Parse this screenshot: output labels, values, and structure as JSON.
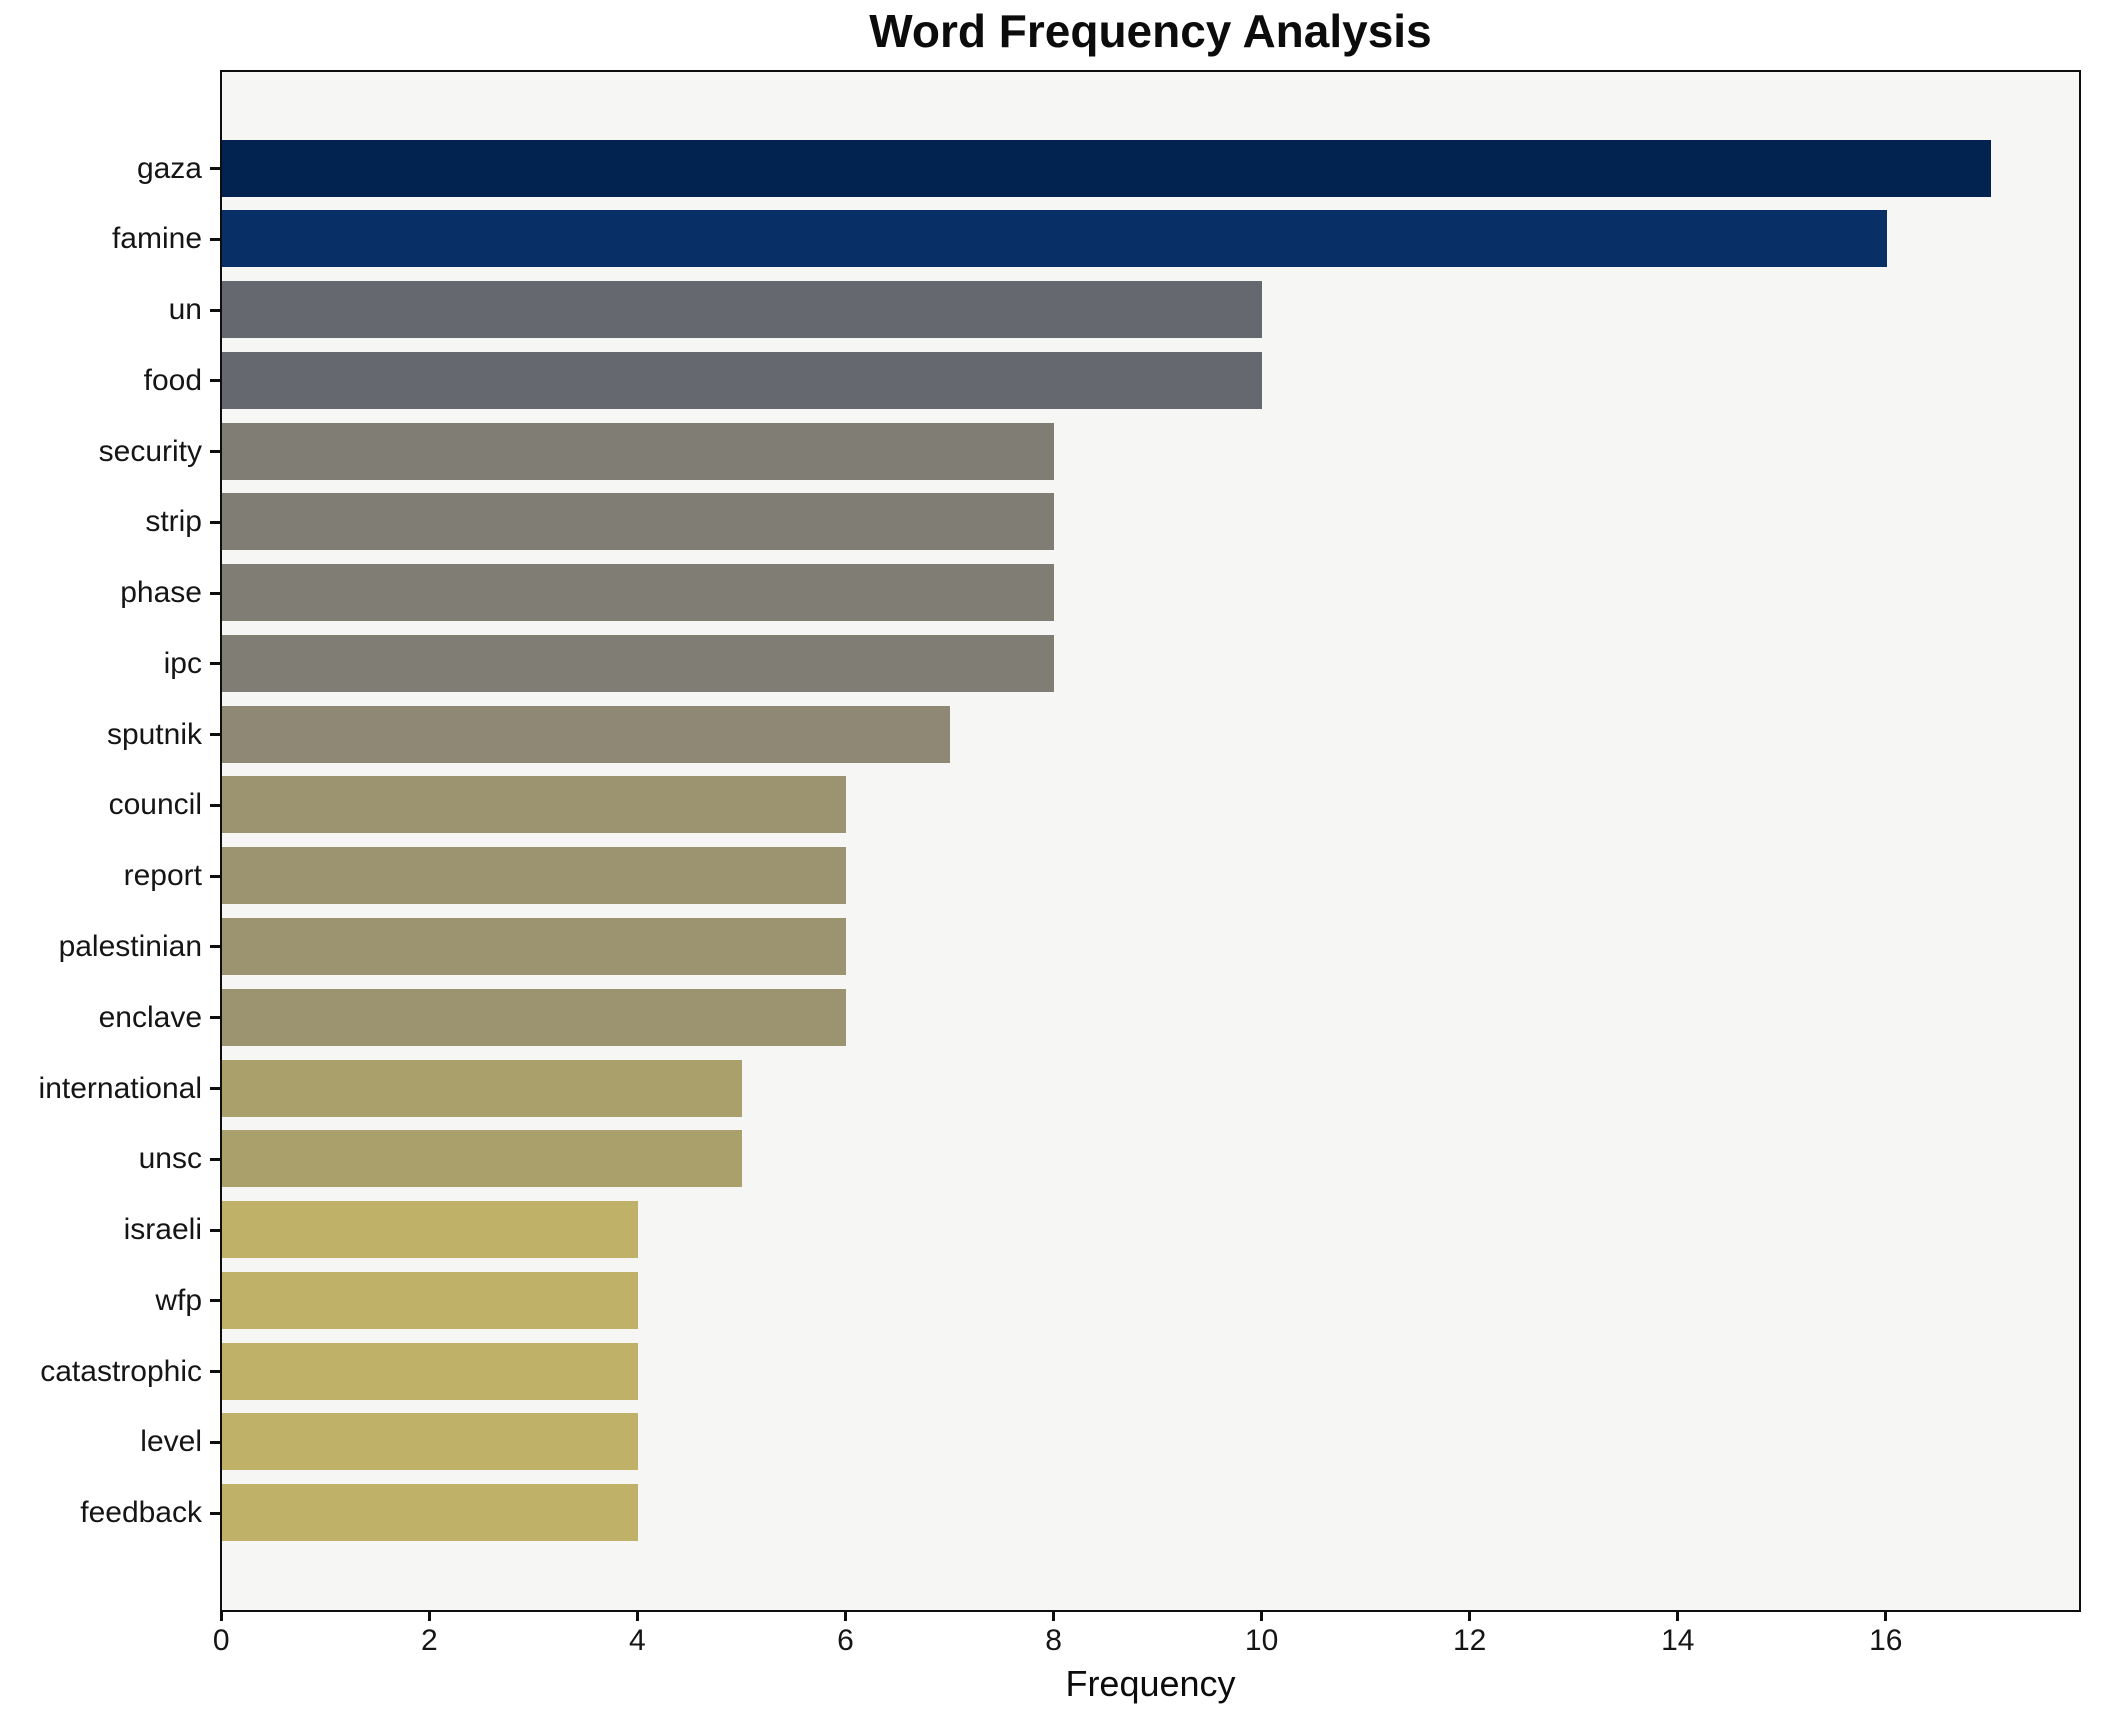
{
  "title": "Word Frequency Analysis",
  "xlabel": "Frequency",
  "chart_data": {
    "type": "bar",
    "orientation": "horizontal",
    "title": "Word Frequency Analysis",
    "xlabel": "Frequency",
    "ylabel": "",
    "grid": false,
    "legend": false,
    "xlim": [
      0,
      17.84
    ],
    "x_ticks": [
      0,
      2,
      4,
      6,
      8,
      10,
      12,
      14,
      16
    ],
    "categories": [
      "gaza",
      "famine",
      "un",
      "food",
      "security",
      "strip",
      "phase",
      "ipc",
      "sputnik",
      "council",
      "report",
      "palestinian",
      "enclave",
      "international",
      "unsc",
      "israeli",
      "wfp",
      "catastrophic",
      "level",
      "feedback"
    ],
    "values": [
      17,
      16,
      10,
      10,
      8,
      8,
      8,
      8,
      7,
      6,
      6,
      6,
      6,
      5,
      5,
      4,
      4,
      4,
      4,
      4
    ],
    "bar_colors": [
      "#022350",
      "#083066",
      "#66686f",
      "#66686f",
      "#807e74",
      "#807e74",
      "#807e74",
      "#807e74",
      "#8e8875",
      "#9c9470",
      "#9c9470",
      "#9c9470",
      "#9c9470",
      "#aaa06b",
      "#aaa06b",
      "#bfb168",
      "#bfb168",
      "#bfb168",
      "#bfb168",
      "#bfb168"
    ],
    "colors": {
      "figure_background": "#ffffff",
      "plot_background": "#f6f6f4",
      "spine": "#0e0e0e",
      "text": "#111111"
    }
  }
}
